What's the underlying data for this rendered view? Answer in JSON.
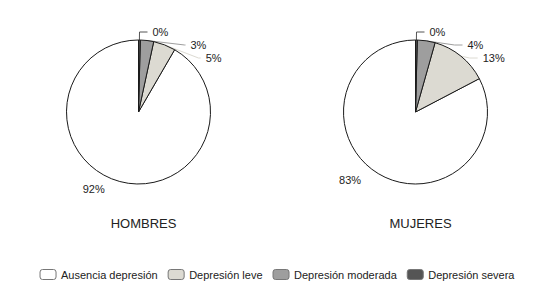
{
  "chart_data": [
    {
      "type": "pie",
      "title": "HOMBRES",
      "categories": [
        "Ausencia depresión",
        "Depresión leve",
        "Depresión moderada",
        "Depresión severa"
      ],
      "values": [
        92,
        5,
        3,
        0.4
      ],
      "value_labels": [
        "92%",
        "5%",
        "3%",
        "0%"
      ],
      "colors": [
        "#FFFFFF",
        "#DCDAD2",
        "#9E9E9E",
        "#555555"
      ],
      "data_labels": true,
      "legend": "bottom"
    },
    {
      "type": "pie",
      "title": "MUJERES",
      "categories": [
        "Ausencia depresión",
        "Depresión leve",
        "Depresión moderada",
        "Depresión severa"
      ],
      "values": [
        83,
        13,
        4,
        0.4
      ],
      "value_labels": [
        "83%",
        "13%",
        "4%",
        "0%"
      ],
      "colors": [
        "#FFFFFF",
        "#DCDAD2",
        "#9E9E9E",
        "#555555"
      ],
      "data_labels": true,
      "legend": "bottom"
    }
  ]
}
